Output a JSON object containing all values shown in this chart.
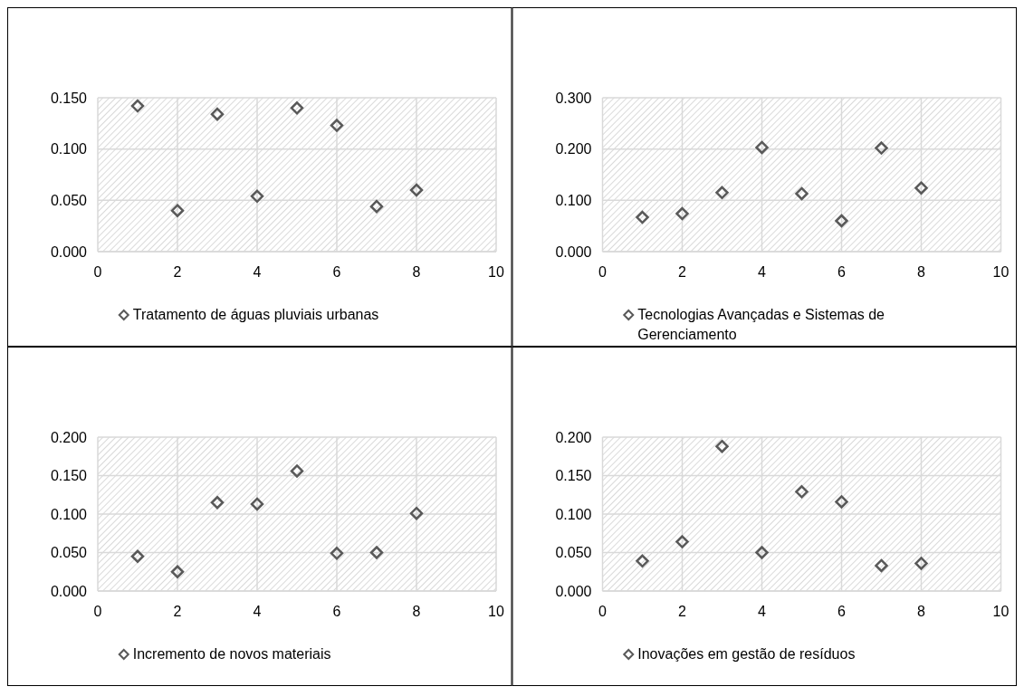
{
  "chart_data": [
    {
      "type": "scatter",
      "xlim": [
        0,
        10
      ],
      "xticks": [
        0,
        2,
        4,
        6,
        8,
        10
      ],
      "ylim": [
        0,
        0.15
      ],
      "yticks": [
        {
          "value": 0,
          "label": "0.000"
        },
        {
          "value": 0.05,
          "label": "0.050"
        },
        {
          "value": 0.1,
          "label": "0.100"
        },
        {
          "value": 0.15,
          "label": "0.150"
        }
      ],
      "grid": true,
      "legend": "bottom",
      "marker": "diamond",
      "series": [
        {
          "name": "Tratamento de águas pluviais urbanas",
          "color": "#595959",
          "x": [
            1,
            2,
            3,
            4,
            5,
            6,
            7,
            8
          ],
          "values": [
            0.142,
            0.04,
            0.134,
            0.054,
            0.14,
            0.123,
            0.044,
            0.06
          ]
        }
      ]
    },
    {
      "type": "scatter",
      "xlim": [
        0,
        10
      ],
      "xticks": [
        0,
        2,
        4,
        6,
        8,
        10
      ],
      "ylim": [
        0,
        0.3
      ],
      "yticks": [
        {
          "value": 0,
          "label": "0.000"
        },
        {
          "value": 0.1,
          "label": "0.100"
        },
        {
          "value": 0.2,
          "label": "0.200"
        },
        {
          "value": 0.3,
          "label": "0.300"
        }
      ],
      "grid": true,
      "legend": "bottom",
      "marker": "diamond",
      "series": [
        {
          "name": "Tecnologias Avançadas e Sistemas de Gerenciamento",
          "color": "#595959",
          "x": [
            1,
            2,
            3,
            4,
            5,
            6,
            7,
            8
          ],
          "values": [
            0.067,
            0.074,
            0.115,
            0.203,
            0.113,
            0.06,
            0.202,
            0.124
          ]
        }
      ]
    },
    {
      "type": "scatter",
      "xlim": [
        0,
        10
      ],
      "xticks": [
        0,
        2,
        4,
        6,
        8,
        10
      ],
      "ylim": [
        0,
        0.2
      ],
      "yticks": [
        {
          "value": 0,
          "label": "0.000"
        },
        {
          "value": 0.05,
          "label": "0.050"
        },
        {
          "value": 0.1,
          "label": "0.100"
        },
        {
          "value": 0.15,
          "label": "0.150"
        },
        {
          "value": 0.2,
          "label": "0.200"
        }
      ],
      "grid": true,
      "legend": "bottom",
      "marker": "diamond",
      "series": [
        {
          "name": "Incremento de novos materiais",
          "color": "#595959",
          "x": [
            1,
            2,
            3,
            4,
            5,
            6,
            7,
            8
          ],
          "values": [
            0.045,
            0.025,
            0.115,
            0.113,
            0.156,
            0.049,
            0.05,
            0.101
          ]
        }
      ]
    },
    {
      "type": "scatter",
      "xlim": [
        0,
        10
      ],
      "xticks": [
        0,
        2,
        4,
        6,
        8,
        10
      ],
      "ylim": [
        0,
        0.2
      ],
      "yticks": [
        {
          "value": 0,
          "label": "0.000"
        },
        {
          "value": 0.05,
          "label": "0.050"
        },
        {
          "value": 0.1,
          "label": "0.100"
        },
        {
          "value": 0.15,
          "label": "0.150"
        },
        {
          "value": 0.2,
          "label": "0.200"
        }
      ],
      "grid": true,
      "legend": "bottom",
      "marker": "diamond",
      "series": [
        {
          "name": "Inovações em gestão de resíduos",
          "color": "#595959",
          "x": [
            1,
            2,
            3,
            4,
            5,
            6,
            7,
            8
          ],
          "values": [
            0.039,
            0.064,
            0.188,
            0.05,
            0.129,
            0.116,
            0.033,
            0.036
          ]
        }
      ]
    }
  ]
}
